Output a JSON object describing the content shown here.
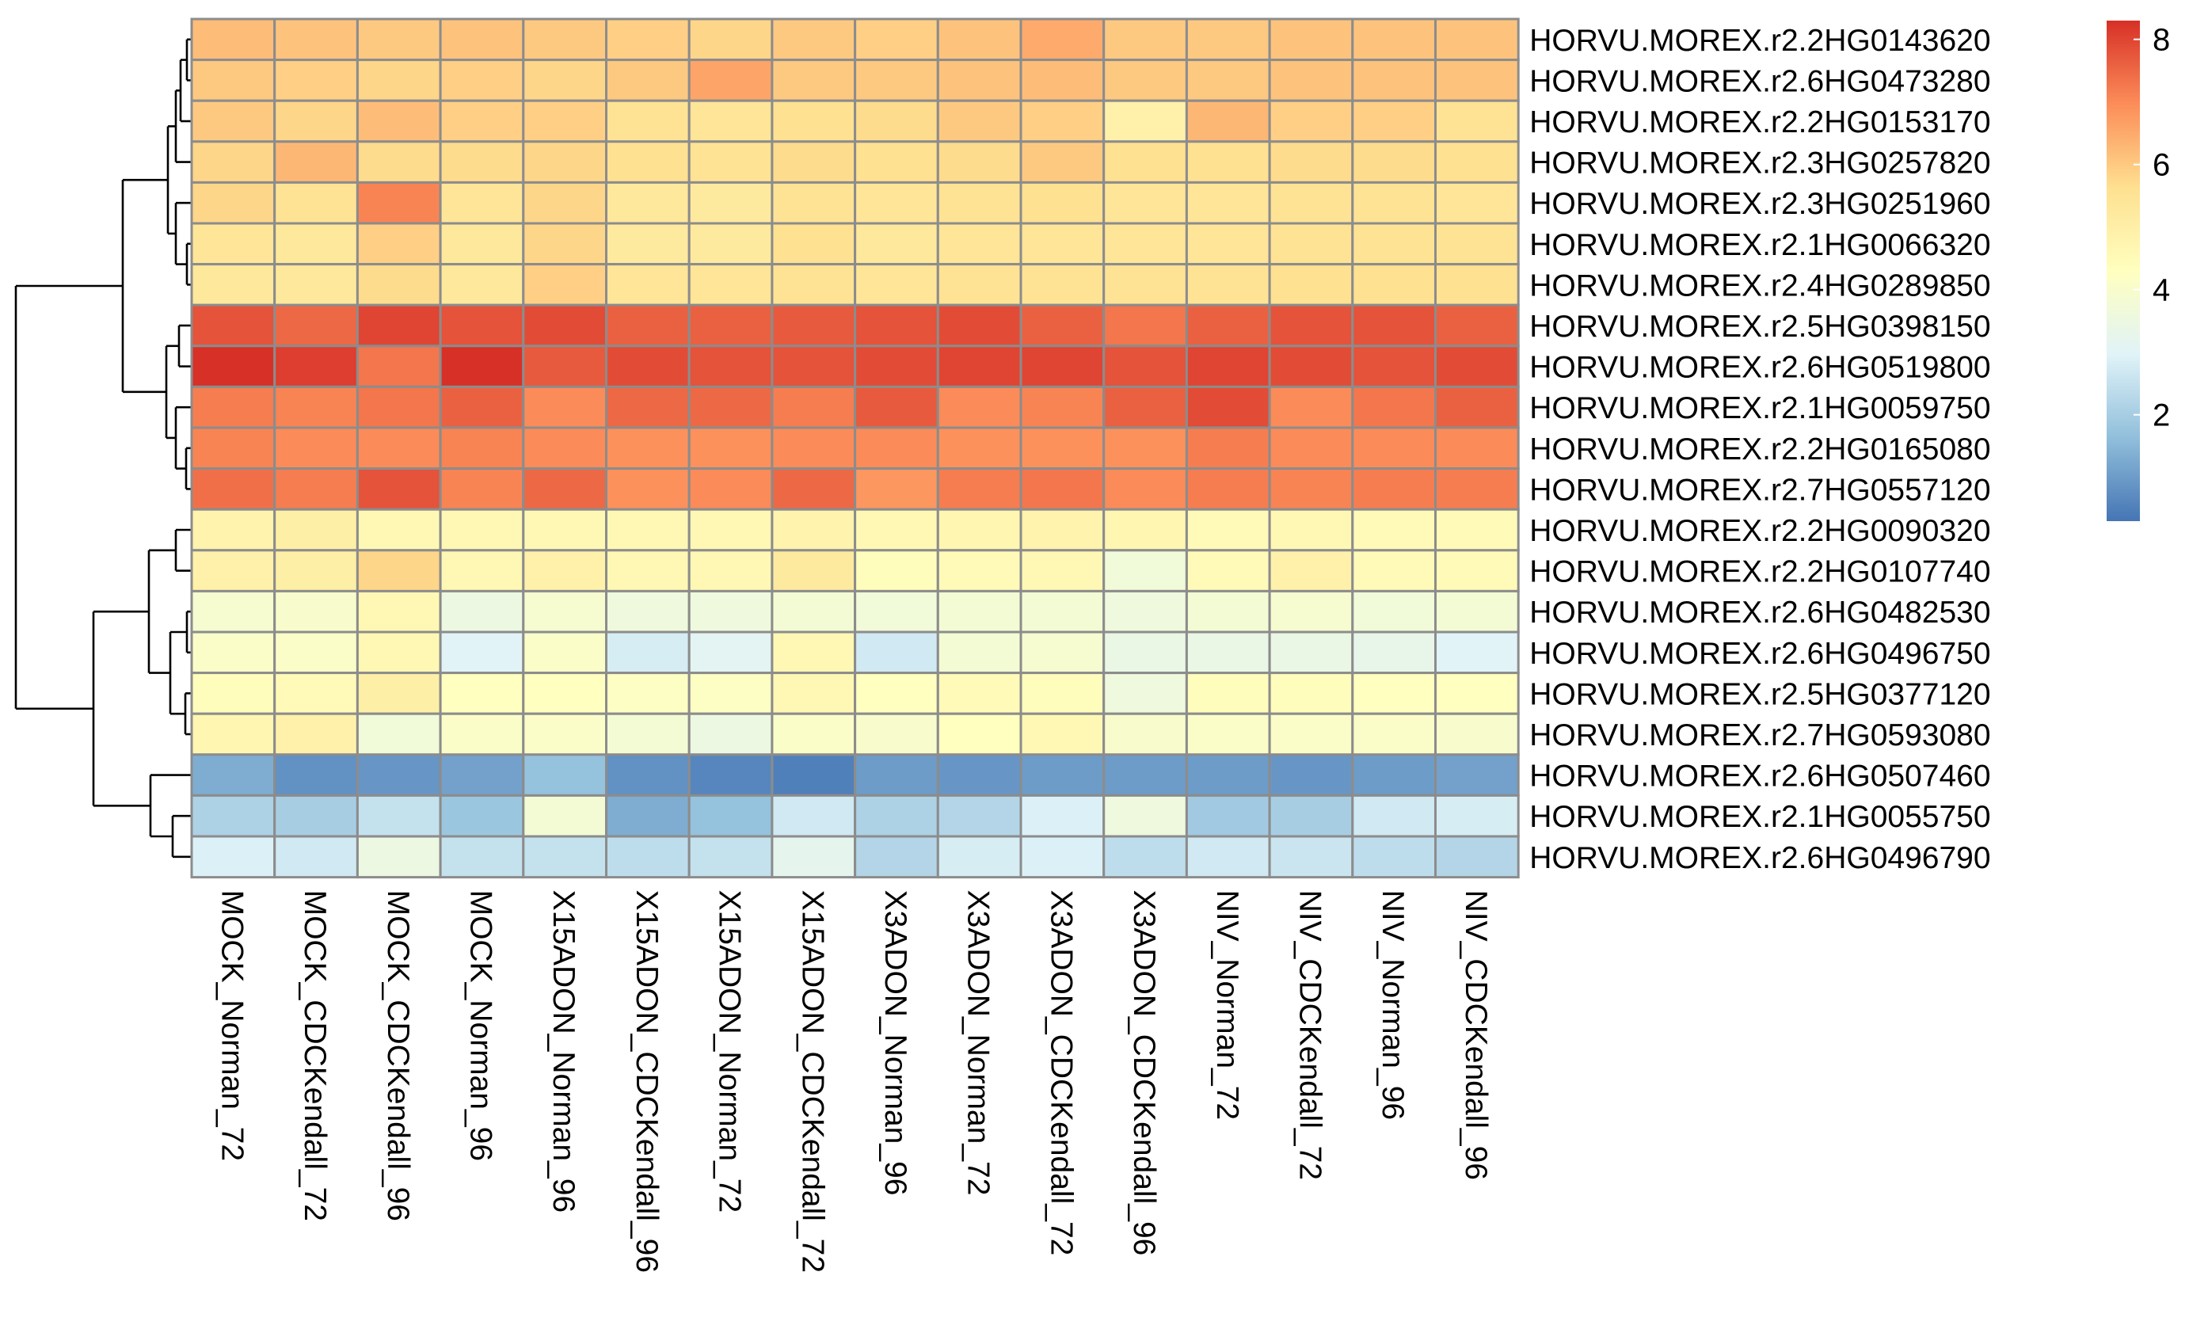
{
  "chart_data": {
    "type": "heatmap",
    "columns": [
      "MOCK_Norman_72",
      "MOCK_CDCKendall_72",
      "MOCK_CDCKendall_96",
      "MOCK_Norman_96",
      "X15ADON_Norman_96",
      "X15ADON_CDCKendall_96",
      "X15ADON_Norman_72",
      "X15ADON_CDCKendall_72",
      "X3ADON_Norman_96",
      "X3ADON_Norman_72",
      "X3ADON_CDCKendall_72",
      "X3ADON_CDCKendall_96",
      "NIV_Norman_72",
      "NIV_CDCKendall_72",
      "NIV_Norman_96",
      "NIV_CDCKendall_96"
    ],
    "rows": [
      "HORVU.MOREX.r2.2HG0143620",
      "HORVU.MOREX.r2.6HG0473280",
      "HORVU.MOREX.r2.2HG0153170",
      "HORVU.MOREX.r2.3HG0257820",
      "HORVU.MOREX.r2.3HG0251960",
      "HORVU.MOREX.r2.1HG0066320",
      "HORVU.MOREX.r2.4HG0289850",
      "HORVU.MOREX.r2.5HG0398150",
      "HORVU.MOREX.r2.6HG0519800",
      "HORVU.MOREX.r2.1HG0059750",
      "HORVU.MOREX.r2.2HG0165080",
      "HORVU.MOREX.r2.7HG0557120",
      "HORVU.MOREX.r2.2HG0090320",
      "HORVU.MOREX.r2.2HG0107740",
      "HORVU.MOREX.r2.6HG0482530",
      "HORVU.MOREX.r2.6HG0496750",
      "HORVU.MOREX.r2.5HG0377120",
      "HORVU.MOREX.r2.7HG0593080",
      "HORVU.MOREX.r2.6HG0507460",
      "HORVU.MOREX.r2.1HG0055750",
      "HORVU.MOREX.r2.6HG0496790"
    ],
    "values": [
      [
        6.2,
        6.1,
        6.0,
        6.1,
        6.0,
        5.9,
        5.8,
        6.0,
        5.9,
        6.1,
        6.5,
        6.0,
        6.0,
        6.1,
        6.1,
        6.1
      ],
      [
        6.0,
        5.9,
        5.8,
        5.9,
        5.8,
        6.0,
        6.6,
        6.0,
        6.0,
        6.1,
        6.2,
        6.0,
        6.0,
        6.1,
        6.1,
        6.1
      ],
      [
        6.0,
        5.8,
        6.2,
        5.9,
        5.9,
        5.5,
        5.4,
        5.6,
        5.7,
        6.0,
        5.9,
        4.9,
        6.3,
        5.9,
        5.9,
        5.5
      ],
      [
        5.8,
        6.3,
        5.7,
        5.7,
        5.8,
        5.6,
        5.5,
        5.7,
        5.6,
        5.7,
        6.0,
        5.6,
        5.6,
        5.7,
        5.7,
        5.6
      ],
      [
        5.8,
        5.5,
        7.1,
        5.4,
        5.8,
        5.3,
        5.2,
        5.5,
        5.4,
        5.5,
        5.6,
        5.4,
        5.4,
        5.5,
        5.5,
        5.4
      ],
      [
        5.4,
        5.3,
        5.9,
        5.3,
        5.8,
        5.2,
        5.2,
        5.6,
        5.3,
        5.4,
        5.4,
        5.4,
        5.4,
        5.5,
        5.5,
        5.5
      ],
      [
        5.3,
        5.3,
        5.7,
        5.3,
        5.9,
        5.4,
        5.4,
        5.5,
        5.4,
        5.5,
        5.5,
        5.5,
        5.5,
        5.6,
        5.6,
        5.6
      ],
      [
        7.8,
        7.5,
        8.0,
        7.8,
        7.9,
        7.6,
        7.6,
        7.7,
        7.8,
        7.9,
        7.6,
        7.3,
        7.6,
        7.8,
        7.8,
        7.6
      ],
      [
        8.3,
        8.1,
        7.3,
        8.3,
        7.7,
        7.9,
        7.8,
        7.8,
        7.9,
        8.0,
        8.0,
        7.8,
        8.0,
        7.9,
        7.8,
        7.9
      ],
      [
        7.2,
        7.1,
        7.3,
        7.6,
        7.0,
        7.5,
        7.5,
        7.2,
        7.7,
        7.0,
        7.1,
        7.6,
        7.9,
        7.0,
        7.3,
        7.6
      ],
      [
        7.1,
        7.0,
        7.0,
        7.1,
        7.0,
        6.9,
        6.9,
        7.0,
        7.0,
        6.9,
        6.9,
        6.9,
        7.2,
        7.0,
        7.0,
        7.0
      ],
      [
        7.4,
        7.2,
        7.8,
        7.1,
        7.5,
        6.9,
        7.0,
        7.5,
        6.8,
        7.2,
        7.3,
        7.0,
        7.2,
        7.1,
        7.2,
        7.2
      ],
      [
        4.8,
        5.0,
        4.6,
        4.6,
        4.6,
        4.6,
        4.6,
        4.8,
        4.6,
        4.7,
        4.8,
        4.7,
        4.5,
        4.6,
        4.5,
        4.5
      ],
      [
        4.9,
        5.0,
        5.8,
        4.6,
        4.9,
        4.6,
        4.6,
        5.2,
        4.4,
        4.5,
        4.6,
        3.7,
        4.5,
        4.9,
        4.5,
        4.5
      ],
      [
        3.9,
        4.0,
        4.6,
        3.5,
        3.9,
        3.6,
        3.6,
        3.8,
        3.7,
        3.8,
        3.8,
        3.6,
        3.8,
        3.9,
        3.7,
        3.8
      ],
      [
        4.1,
        4.1,
        4.6,
        3.0,
        4.1,
        2.8,
        3.1,
        4.6,
        2.7,
        3.8,
        3.9,
        3.4,
        3.4,
        3.4,
        3.3,
        3.0
      ],
      [
        4.4,
        4.5,
        5.0,
        4.3,
        4.3,
        4.2,
        4.2,
        4.6,
        4.3,
        4.5,
        4.4,
        3.6,
        4.4,
        4.4,
        4.3,
        4.3
      ],
      [
        4.7,
        4.9,
        3.7,
        4.1,
        4.1,
        3.8,
        3.5,
        4.1,
        4.0,
        4.3,
        4.6,
        4.0,
        4.1,
        4.1,
        4.1,
        4.0
      ],
      [
        1.3,
        0.8,
        0.9,
        1.1,
        1.7,
        0.8,
        0.6,
        0.5,
        1.0,
        0.9,
        1.0,
        1.0,
        1.0,
        0.9,
        1.0,
        1.1
      ],
      [
        2.1,
        2.0,
        2.5,
        1.8,
        3.8,
        1.3,
        1.7,
        2.7,
        2.1,
        2.2,
        2.9,
        3.6,
        1.9,
        2.0,
        2.7,
        2.8
      ],
      [
        2.9,
        2.7,
        3.5,
        2.5,
        2.5,
        2.4,
        2.5,
        3.2,
        2.2,
        2.8,
        2.9,
        2.4,
        2.7,
        2.6,
        2.4,
        2.2
      ]
    ],
    "color_scale": {
      "min": 0.3,
      "max": 8.3,
      "colors": [
        "#4575b4",
        "#91bfdb",
        "#e0f3f8",
        "#ffffbf",
        "#fee090",
        "#fc8d59",
        "#d73027"
      ],
      "ticks": [
        2,
        4,
        6,
        8
      ]
    },
    "row_dendrogram": "left",
    "legend_position": "right",
    "grid": true
  }
}
